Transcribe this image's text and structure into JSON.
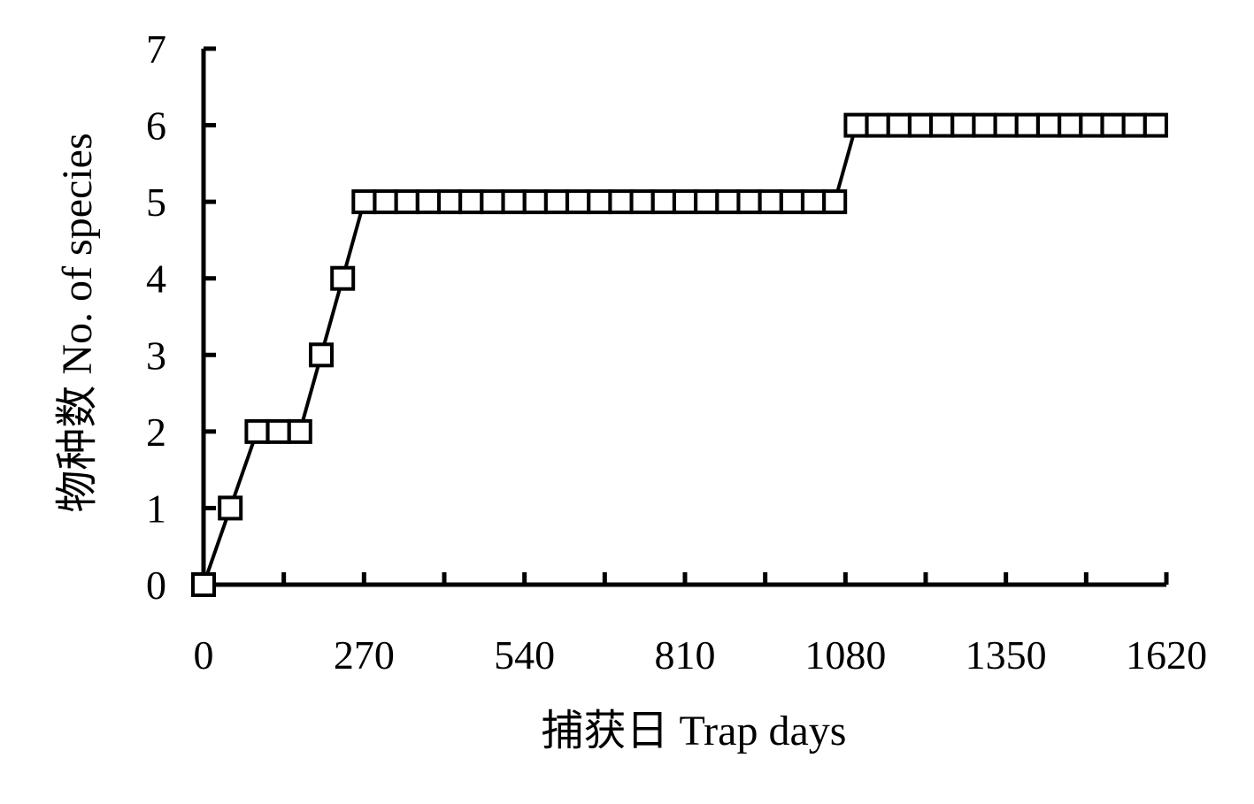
{
  "chart_data": {
    "type": "line",
    "title": "",
    "xlabel": "捕获日 Trap days",
    "ylabel": "物种数 No. of species",
    "xlim": [
      0,
      1620
    ],
    "ylim": [
      0,
      7
    ],
    "x_ticks": [
      0,
      270,
      540,
      810,
      1080,
      1350,
      1620
    ],
    "y_ticks": [
      0,
      1,
      2,
      3,
      4,
      5,
      6,
      7
    ],
    "grid": false,
    "legend": "none",
    "marker": "hollow-square",
    "line_color": "#000000",
    "series": [
      {
        "x": [
          0,
          45,
          90,
          126,
          162,
          198,
          234,
          270,
          306,
          342,
          378,
          414,
          450,
          486,
          522,
          558,
          594,
          630,
          666,
          702,
          738,
          774,
          810,
          846,
          882,
          918,
          954,
          990,
          1026,
          1062,
          1098,
          1134,
          1170,
          1206,
          1242,
          1278,
          1314,
          1350,
          1386,
          1422,
          1458,
          1494,
          1530,
          1566,
          1602
        ],
        "y": [
          0,
          1,
          2,
          2,
          2,
          3,
          4,
          5,
          5,
          5,
          5,
          5,
          5,
          5,
          5,
          5,
          5,
          5,
          5,
          5,
          5,
          5,
          5,
          5,
          5,
          5,
          5,
          5,
          5,
          5,
          6,
          6,
          6,
          6,
          6,
          6,
          6,
          6,
          6,
          6,
          6,
          6,
          6,
          6,
          6
        ]
      }
    ]
  }
}
